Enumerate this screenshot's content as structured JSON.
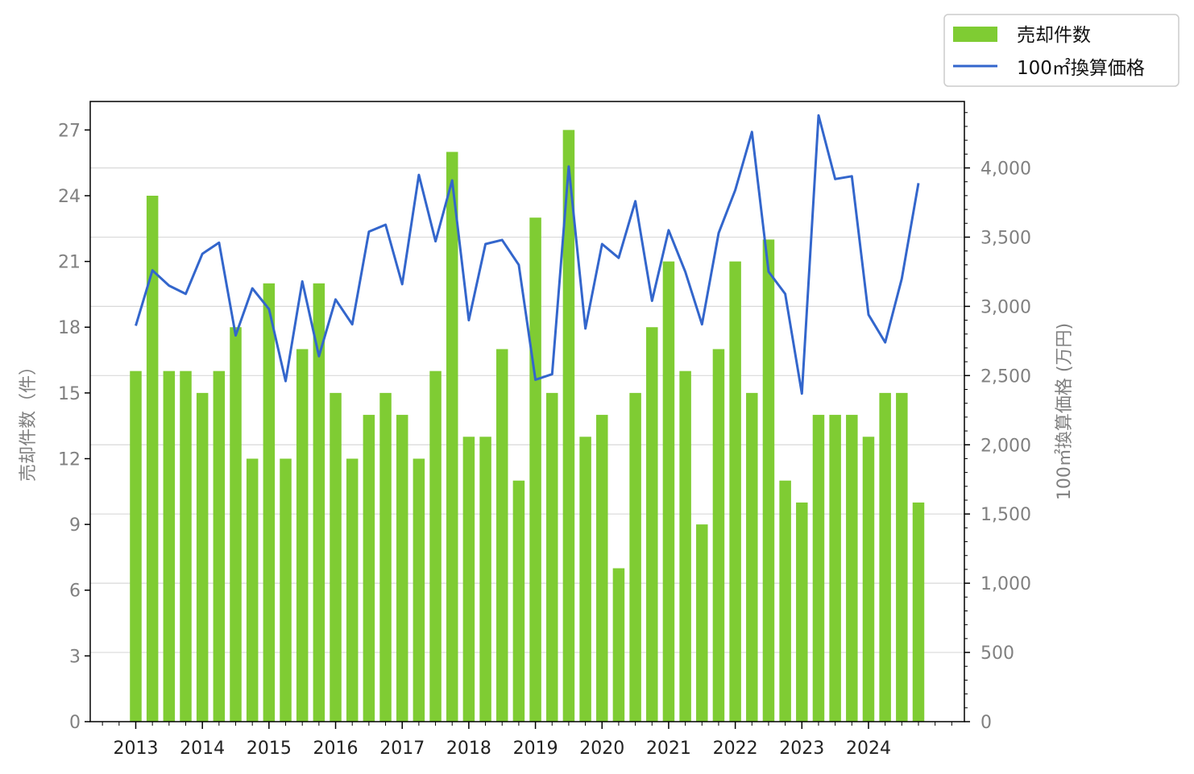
{
  "chart_data": {
    "type": "bar+line",
    "x_labels": [
      "2013",
      "2014",
      "2015",
      "2016",
      "2017",
      "2018",
      "2019",
      "2020",
      "2021",
      "2022",
      "2023",
      "2024"
    ],
    "periods": [
      "2013Q1",
      "2013Q2",
      "2013Q3",
      "2013Q4",
      "2014Q1",
      "2014Q2",
      "2014Q3",
      "2014Q4",
      "2015Q1",
      "2015Q2",
      "2015Q3",
      "2015Q4",
      "2016Q1",
      "2016Q2",
      "2016Q3",
      "2016Q4",
      "2017Q1",
      "2017Q2",
      "2017Q3",
      "2017Q4",
      "2018Q1",
      "2018Q2",
      "2018Q3",
      "2018Q4",
      "2019Q1",
      "2019Q2",
      "2019Q3",
      "2019Q4",
      "2020Q1",
      "2020Q2",
      "2020Q3",
      "2020Q4",
      "2021Q1",
      "2021Q2",
      "2021Q3",
      "2021Q4",
      "2022Q1",
      "2022Q2",
      "2022Q3",
      "2022Q4",
      "2023Q1",
      "2023Q2",
      "2023Q3",
      "2023Q4",
      "2024Q1",
      "2024Q2",
      "2024Q3",
      "2024Q4"
    ],
    "series": [
      {
        "name": "売却件数",
        "kind": "bar",
        "axis": "left",
        "color": "#7fcc33",
        "values": [
          16,
          24,
          16,
          16,
          15,
          16,
          18,
          12,
          20,
          12,
          17,
          20,
          15,
          12,
          14,
          15,
          14,
          12,
          16,
          26,
          13,
          13,
          17,
          11,
          23,
          15,
          27,
          13,
          14,
          7,
          15,
          18,
          21,
          16,
          9,
          17,
          21,
          15,
          22,
          11,
          10,
          14,
          14,
          14,
          13,
          15,
          15,
          10
        ]
      },
      {
        "name": "100㎡換算価格",
        "kind": "line",
        "axis": "right",
        "color": "#3366cc",
        "values": [
          2860,
          3260,
          3150,
          3090,
          3380,
          3460,
          2790,
          3130,
          2980,
          2460,
          3180,
          2640,
          3050,
          2870,
          3540,
          3590,
          3160,
          3950,
          3470,
          3910,
          2900,
          3450,
          3480,
          3300,
          2470,
          2510,
          4010,
          2840,
          3450,
          3350,
          3760,
          3040,
          3550,
          3250,
          2870,
          3530,
          3840,
          4260,
          3250,
          3090,
          2370,
          4380,
          3920,
          3940,
          2940,
          2740,
          3200,
          3890
        ]
      }
    ],
    "y_left": {
      "label": "売却件数（件）",
      "ylim": [
        0,
        28.3
      ],
      "ticks": [
        "0",
        "3",
        "6",
        "9",
        "12",
        "15",
        "18",
        "21",
        "24",
        "27"
      ]
    },
    "y_right": {
      "label": "100㎡換算価格 (万円)",
      "ylim": [
        0,
        4480
      ],
      "ticks": [
        "0",
        "500",
        "1,000",
        "1,500",
        "2,000",
        "2,500",
        "3,000",
        "3,500",
        "4,000"
      ]
    },
    "grid": "horizontal",
    "legend_position": "top-right"
  }
}
